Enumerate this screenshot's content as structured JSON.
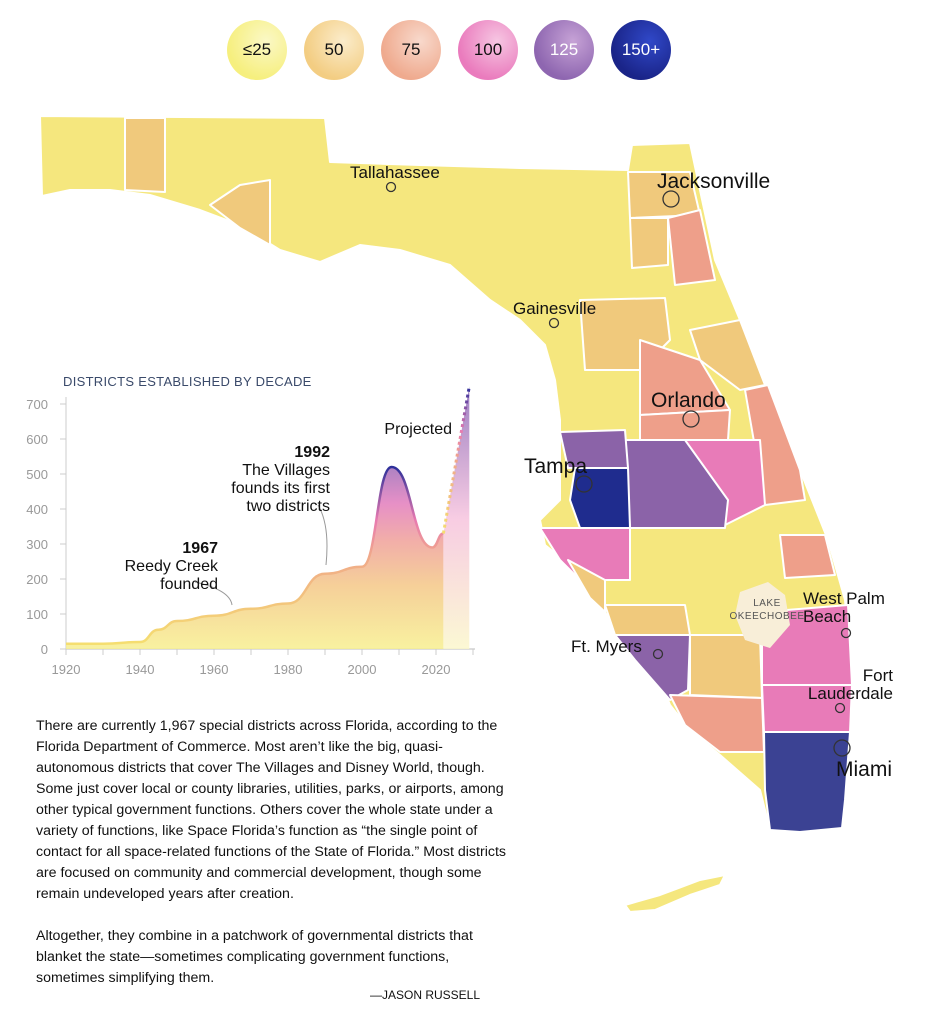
{
  "legend": {
    "items": [
      {
        "label": "≤25",
        "color": "#f6ef7e"
      },
      {
        "label": "50",
        "color": "#f3cd82"
      },
      {
        "label": "75",
        "color": "#efaa8e"
      },
      {
        "label": "100",
        "color": "#ea7bbd"
      },
      {
        "label": "125",
        "color": "#8e66b0"
      },
      {
        "label": "150+",
        "color": "#1f2f96"
      }
    ]
  },
  "map": {
    "cities": [
      "Tallahassee",
      "Jacksonville",
      "Gainesville",
      "Orlando",
      "Tampa",
      "Ft. Myers",
      "West Palm Beach",
      "Fort Lauderdale",
      "Miami"
    ],
    "lake": "LAKE OKEECHOBEE"
  },
  "chart_data": {
    "type": "area",
    "title": "DISTRICTS ESTABLISHED BY DECADE",
    "x": [
      1920,
      1930,
      1940,
      1945,
      1950,
      1960,
      1970,
      1980,
      1990,
      2000,
      2008,
      2019,
      2022
    ],
    "values": [
      15,
      15,
      20,
      55,
      80,
      95,
      115,
      130,
      215,
      235,
      520,
      290,
      330
    ],
    "projected": {
      "label": "Projected",
      "x": [
        2022,
        2029
      ],
      "values": [
        330,
        750
      ]
    },
    "xticks": [
      1920,
      1940,
      1960,
      1980,
      2000,
      2020
    ],
    "yticks": [
      0,
      100,
      200,
      300,
      400,
      500,
      600,
      700
    ],
    "xlim": [
      1920,
      2030
    ],
    "ylim": [
      0,
      750
    ],
    "annotations": [
      {
        "year": "1967",
        "text": "Reedy Creek founded"
      },
      {
        "year": "1992",
        "text": "The Villages founds its first two districts"
      }
    ]
  },
  "annotations": {
    "a1967_year": "1967",
    "a1967_l1": "Reedy Creek",
    "a1967_l2": "founded",
    "a1992_year": "1992",
    "a1992_l1": "The Villages",
    "a1992_l2": "founds its first",
    "a1992_l3": "two districts",
    "projected": "Projected"
  },
  "text": {
    "p1": "There are currently 1,967 special districts across Florida, according to the Florida Department of Commerce. Most aren’t like the big, quasi-autonomous districts that cover The Villages and Disney World, though. Some just cover local or county libraries, utilities, parks, or airports, among other typical government functions. Others cover the whole state under a variety of functions, like Space Florida’s function as “the single point of contact for all space-related functions of the State of Florida.” Most districts are focused on community and commercial development, though some remain undeveloped years after creation.",
    "p2": "Altogether, they combine in a patchwork of governmental districts that blanket the state—sometimes complicating government functions, sometimes simplifying them.",
    "byline": "—JASON RUSSELL"
  }
}
